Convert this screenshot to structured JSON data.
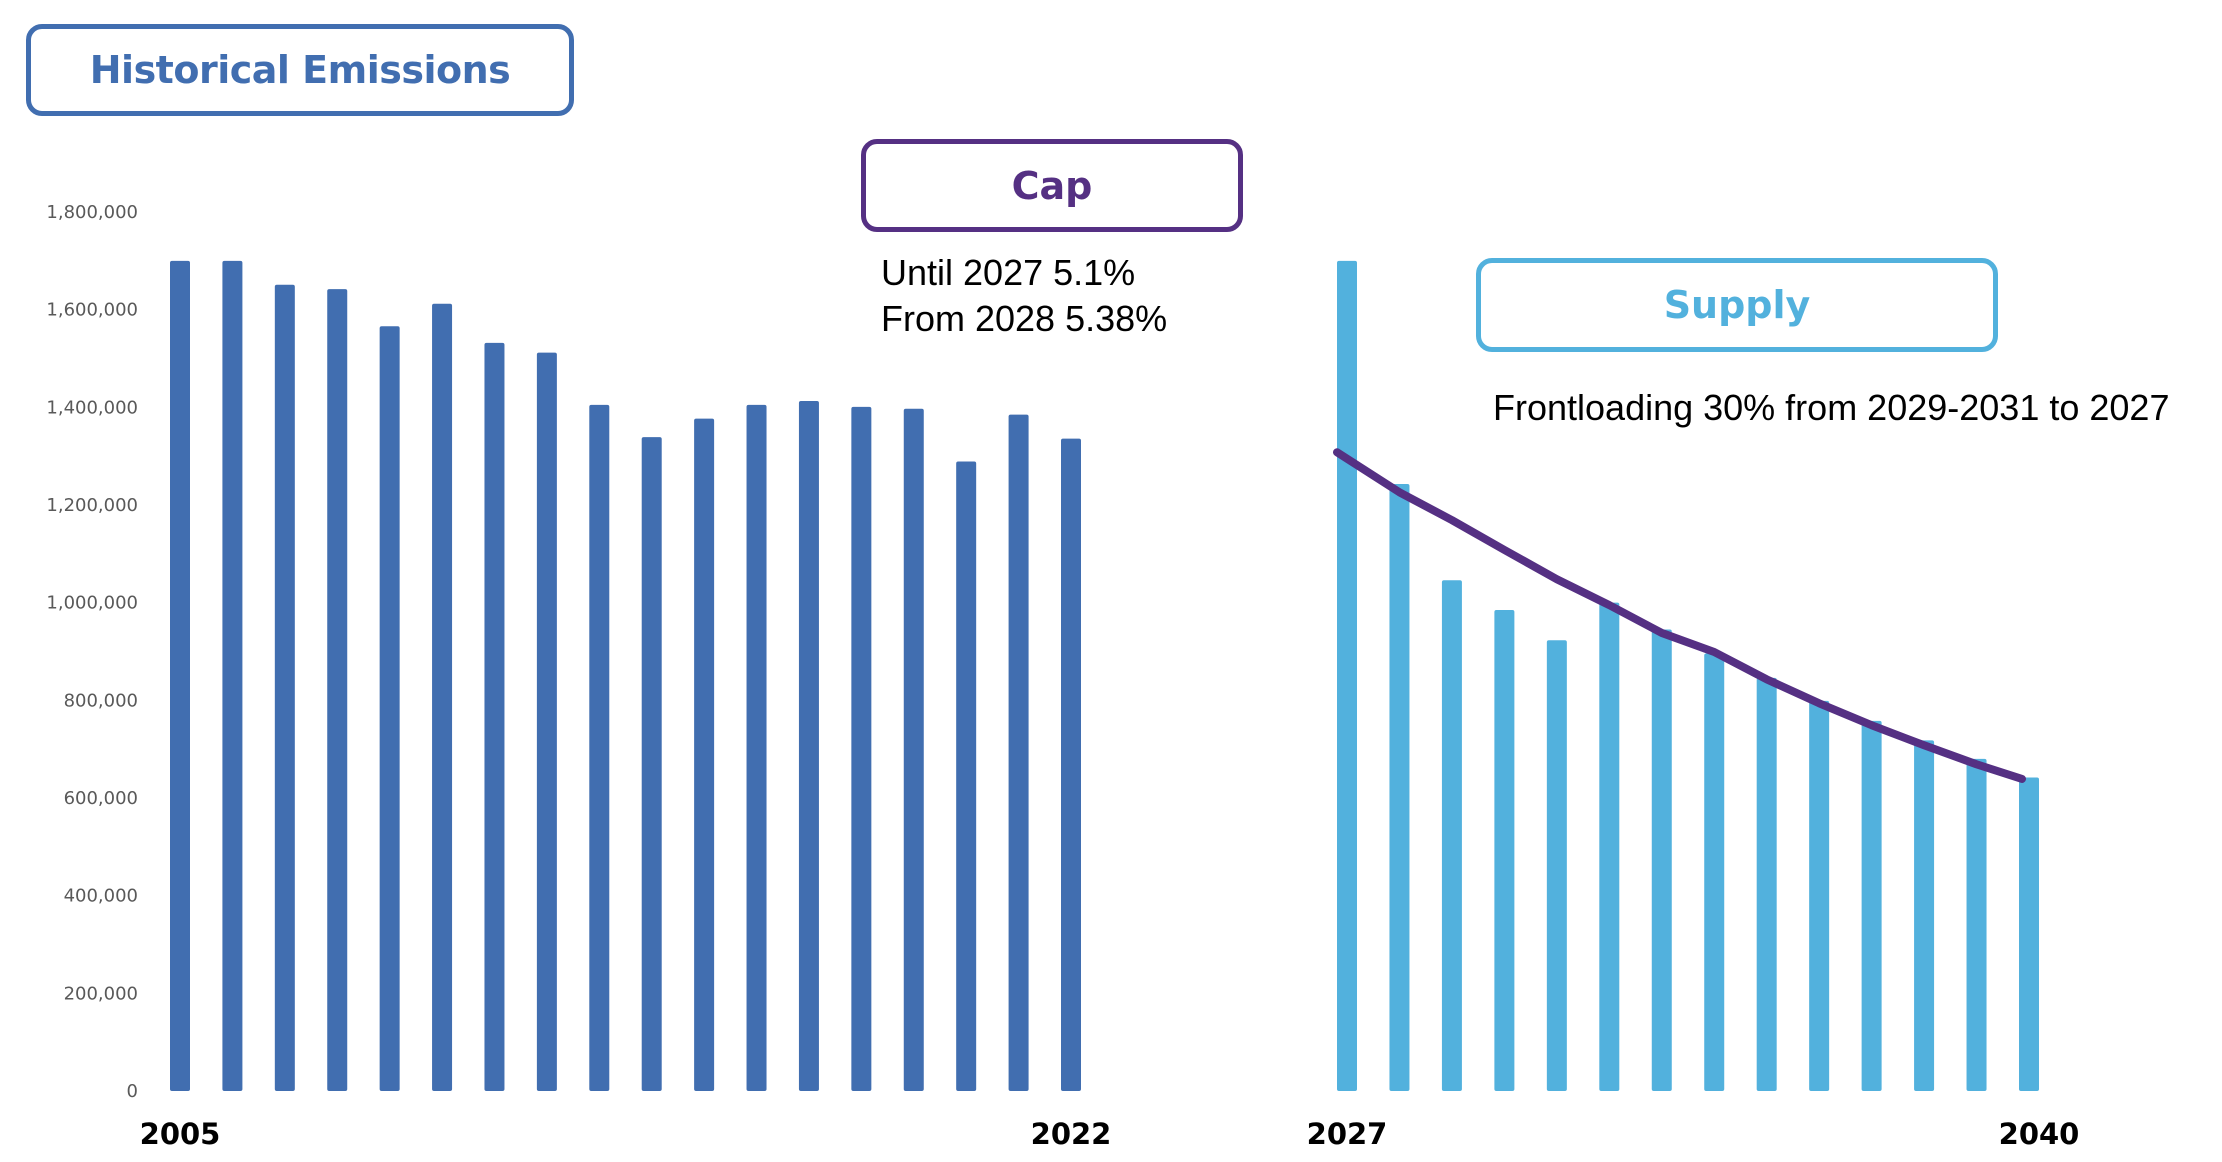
{
  "labels": {
    "historical_title": "Historical Emissions",
    "cap_title": "Cap",
    "supply_title": "Supply",
    "cap_note_lines": [
      "Until 2027 5.1%",
      "From 2028 5.38%"
    ],
    "supply_note": "Frontloading 30% from 2029-2031 to 2027"
  },
  "colors": {
    "historical": "#416eb0",
    "supply": "#52b1dd",
    "cap": "#553083",
    "tick_text": "#595959"
  },
  "chart_data": {
    "type": "bar",
    "title": "",
    "xlabel": "",
    "ylabel": "",
    "ylim": [
      0,
      1800000
    ],
    "y_ticks": [
      "0",
      "200,000",
      "400,000",
      "600,000",
      "800,000",
      "1,000,000",
      "1,200,000",
      "1,400,000",
      "1,600,000",
      "1,800,000"
    ],
    "y_tick_values": [
      0,
      200000,
      400000,
      600000,
      800000,
      1000000,
      1200000,
      1400000,
      1600000,
      1800000
    ],
    "grid": false,
    "legend": "none",
    "series": [
      {
        "name": "Historical Emissions",
        "type": "bar",
        "x": [
          2005,
          2006,
          2007,
          2008,
          2009,
          2010,
          2011,
          2012,
          2013,
          2014,
          2015,
          2016,
          2017,
          2018,
          2019,
          2020,
          2021,
          2022
        ],
        "values": [
          1700000,
          1700000,
          1651000,
          1642000,
          1566000,
          1612000,
          1532000,
          1512000,
          1405000,
          1339000,
          1377000,
          1405000,
          1413000,
          1401000,
          1397000,
          1289000,
          1385000,
          1336000
        ],
        "x_tick_labels": [
          "2005",
          "2022"
        ]
      },
      {
        "name": "Supply",
        "type": "bar",
        "x": [
          2027,
          2028,
          2029,
          2030,
          2031,
          2032,
          2033,
          2034,
          2035,
          2036,
          2037,
          2038,
          2039,
          2040
        ],
        "values": [
          1700000,
          1243000,
          1046000,
          985000,
          923000,
          1000000,
          945000,
          896000,
          846000,
          799000,
          758000,
          718000,
          680000,
          642000
        ],
        "x_tick_labels": [
          "2027",
          "2040"
        ]
      },
      {
        "name": "Cap",
        "type": "line",
        "x": [
          2027,
          2028,
          2029,
          2030,
          2031,
          2032,
          2033,
          2034,
          2035,
          2036,
          2037,
          2038,
          2039,
          2040
        ],
        "values": [
          1308000,
          1226000,
          1169000,
          1108000,
          1048000,
          995000,
          938000,
          899000,
          843000,
          794000,
          749000,
          708000,
          669000,
          639000
        ]
      }
    ]
  }
}
